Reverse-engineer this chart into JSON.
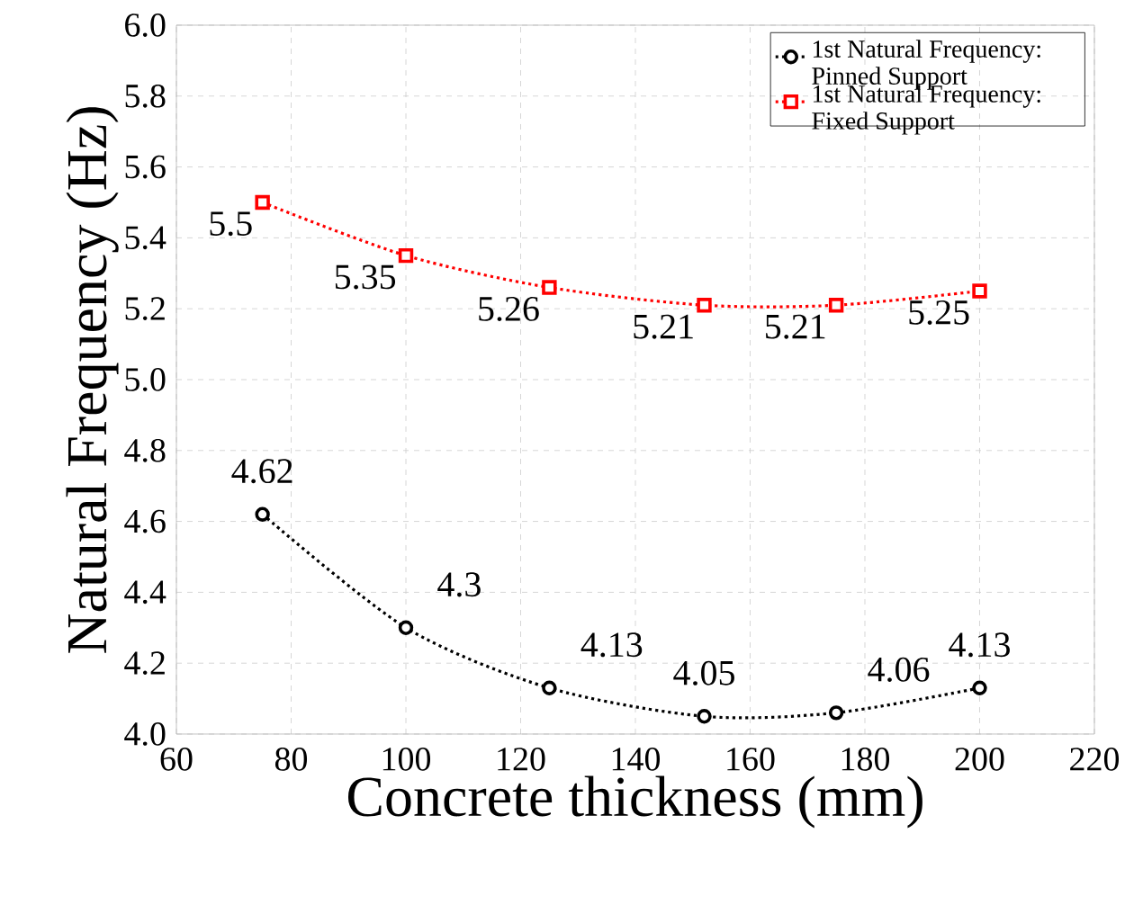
{
  "chart_data": {
    "type": "line",
    "xlabel": "Concrete thickness (mm)",
    "ylabel": "Natural Frequency (Hz)",
    "x": [
      75,
      100,
      125,
      152,
      175,
      200
    ],
    "series": [
      {
        "name": "1st Natural Frequency: Pinned Support",
        "color": "#000000",
        "marker": "circle",
        "values": [
          4.62,
          4.3,
          4.13,
          4.05,
          4.06,
          4.13
        ]
      },
      {
        "name": "1st Natural Frequency: Fixed Support",
        "color": "#ff0000",
        "marker": "square",
        "values": [
          5.5,
          5.35,
          5.26,
          5.21,
          5.21,
          5.25
        ]
      }
    ],
    "xlim": [
      60,
      220
    ],
    "xticks": [
      60,
      80,
      100,
      120,
      140,
      160,
      180,
      200,
      220
    ],
    "ylim": [
      4.0,
      6.0
    ],
    "yticks": [
      {
        "value": 4.0,
        "label": "4.0"
      },
      {
        "value": 4.2,
        "label": "4.2"
      },
      {
        "value": 4.4,
        "label": "4.4"
      },
      {
        "value": 4.6,
        "label": "4.6"
      },
      {
        "value": 4.8,
        "label": "4.8"
      },
      {
        "value": 5.0,
        "label": "5.0"
      },
      {
        "value": 5.2,
        "label": "5.2"
      },
      {
        "value": 5.4,
        "label": "5.4"
      },
      {
        "value": 5.6,
        "label": "5.6"
      },
      {
        "value": 5.8,
        "label": "5.8"
      },
      {
        "value": 6.0,
        "label": "6.0"
      }
    ],
    "grid": true,
    "legend": "top right",
    "line_style": "dotted",
    "data_labels": true
  }
}
